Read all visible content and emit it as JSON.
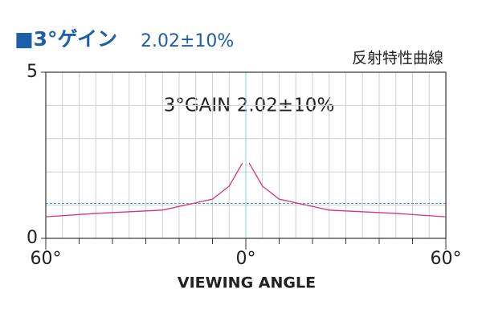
{
  "chart_data": {
    "type": "line",
    "title": "■3°ゲイン",
    "title_value": "2.02±10%",
    "subtitle": "反射特性曲線",
    "annotation": "3°GAIN 2.02±10%",
    "x_label": "VIEWING  ANGLE",
    "x": [
      -60,
      -45,
      -25,
      -10,
      -5,
      -1,
      0,
      1,
      5,
      10,
      25,
      45,
      60
    ],
    "series": [
      {
        "color": "#d6337d",
        "values": [
          0.65,
          0.75,
          0.85,
          1.18,
          1.57,
          2.27,
          null,
          2.27,
          1.57,
          1.18,
          0.85,
          0.75,
          0.65
        ]
      }
    ],
    "xlim": [
      -60,
      60
    ],
    "ylim": [
      0,
      5
    ],
    "xticks": [
      {
        "value": -60,
        "label": "60°"
      },
      {
        "value": 0,
        "label": "0°"
      },
      {
        "value": 60,
        "label": "60°"
      }
    ],
    "xminorticks": [
      -50,
      -40,
      -30,
      -20,
      -10,
      10,
      20,
      30,
      40,
      50
    ],
    "yticks": [
      0,
      5
    ],
    "xgrid": [
      -55,
      -50,
      -45,
      -40,
      -35,
      -30,
      -25,
      -20,
      -15,
      -10,
      -5,
      5,
      10,
      15,
      20,
      25,
      30,
      35,
      40,
      45,
      50,
      55
    ],
    "ygrid": [
      1,
      2,
      3,
      4
    ],
    "reference_line": {
      "value": 1.05,
      "color": "#3aa0c8"
    },
    "center_line": {
      "value": 0,
      "color": "#7ccfe0"
    }
  }
}
